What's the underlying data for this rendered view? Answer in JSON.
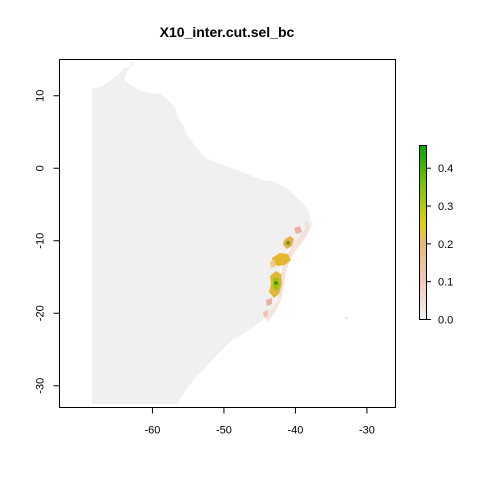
{
  "title": "X10_inter.cut.sel_bc",
  "map": {
    "x_range": [
      -73,
      -26
    ],
    "y_range": [
      -33,
      15
    ],
    "x_ticks": [
      -60,
      -50,
      -40,
      -30
    ],
    "y_ticks": [
      10,
      0,
      -10,
      -20,
      -30
    ],
    "land_color": "#f0f0f0",
    "background_color": "#ffffff"
  },
  "legend": {
    "ticks": [
      "0.4",
      "0.3",
      "0.2",
      "0.1",
      "0.0"
    ],
    "range": [
      0,
      0.46
    ],
    "colors": [
      "#f2f2f2",
      "#f1c9b8",
      "#e6ba6c",
      "#e2d10a",
      "#78c20a",
      "#00a600"
    ]
  }
}
